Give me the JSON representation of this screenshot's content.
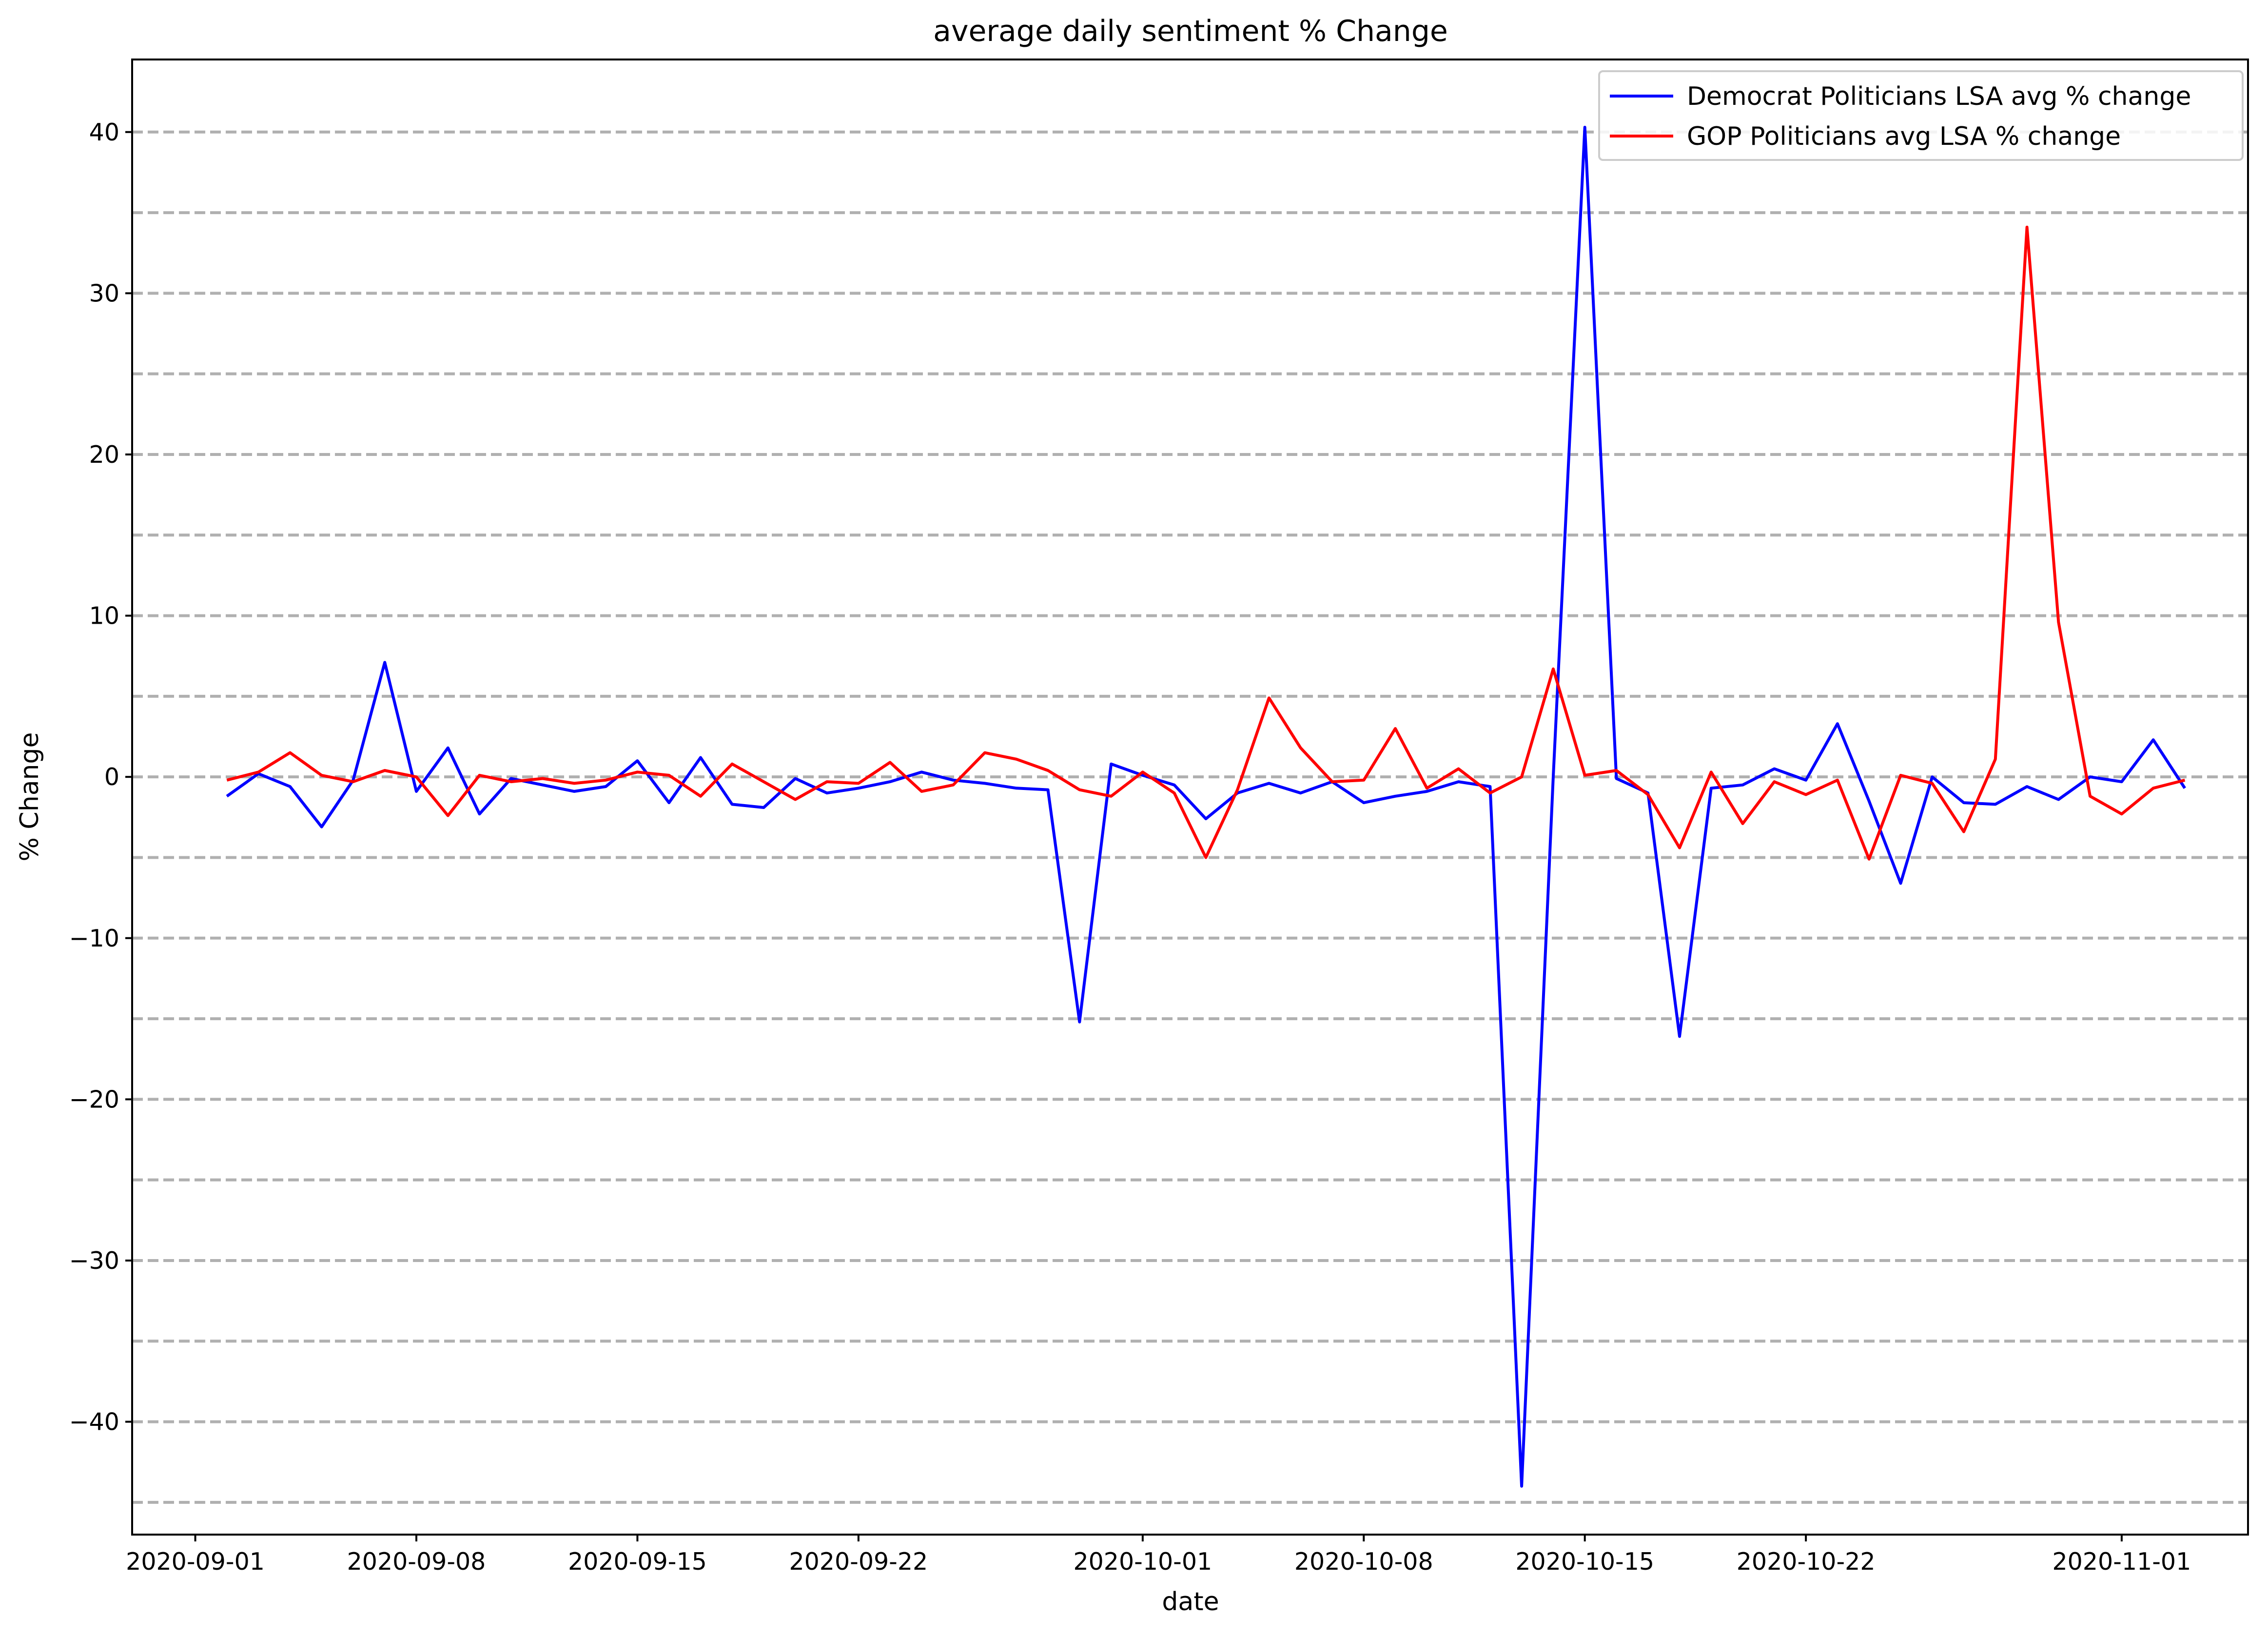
{
  "chart_data": {
    "type": "line",
    "title": "average daily sentiment % Change",
    "xlabel": "date",
    "ylabel": "% Change",
    "xlim": [
      "2020-08-30",
      "2020-11-05"
    ],
    "ylim": [
      -47,
      44.5
    ],
    "grid": {
      "axis": "y",
      "style": "dashed",
      "minor_step": 5
    },
    "legend_position": "top-right",
    "x_ticks": [
      "2020-09-01",
      "2020-09-08",
      "2020-09-15",
      "2020-09-22",
      "2020-10-01",
      "2020-10-08",
      "2020-10-15",
      "2020-10-22",
      "2020-11-01"
    ],
    "y_ticks": [
      -40,
      -30,
      -20,
      -10,
      0,
      10,
      20,
      30,
      40
    ],
    "y_tick_labels": [
      "−40",
      "−30",
      "−20",
      "−10",
      "0",
      "10",
      "20",
      "30",
      "40"
    ],
    "x": [
      "2020-09-02",
      "2020-09-03",
      "2020-09-04",
      "2020-09-05",
      "2020-09-06",
      "2020-09-07",
      "2020-09-08",
      "2020-09-09",
      "2020-09-10",
      "2020-09-11",
      "2020-09-12",
      "2020-09-13",
      "2020-09-14",
      "2020-09-15",
      "2020-09-16",
      "2020-09-17",
      "2020-09-18",
      "2020-09-19",
      "2020-09-20",
      "2020-09-21",
      "2020-09-22",
      "2020-09-23",
      "2020-09-24",
      "2020-09-25",
      "2020-09-26",
      "2020-09-27",
      "2020-09-28",
      "2020-09-29",
      "2020-09-30",
      "2020-10-01",
      "2020-10-02",
      "2020-10-03",
      "2020-10-04",
      "2020-10-05",
      "2020-10-06",
      "2020-10-07",
      "2020-10-08",
      "2020-10-09",
      "2020-10-10",
      "2020-10-11",
      "2020-10-12",
      "2020-10-13",
      "2020-10-14",
      "2020-10-15",
      "2020-10-16",
      "2020-10-17",
      "2020-10-18",
      "2020-10-19",
      "2020-10-20",
      "2020-10-21",
      "2020-10-22",
      "2020-10-23",
      "2020-10-24",
      "2020-10-25",
      "2020-10-26",
      "2020-10-27",
      "2020-10-28",
      "2020-10-29",
      "2020-10-30",
      "2020-10-31",
      "2020-11-01",
      "2020-11-02",
      "2020-11-03"
    ],
    "series": [
      {
        "name": "Democrat Politicians LSA avg % change",
        "color": "#0000ff",
        "values": [
          -1.2,
          0.2,
          -0.6,
          -3.1,
          -0.2,
          7.1,
          -0.9,
          1.8,
          -2.3,
          -0.1,
          -0.5,
          -0.9,
          -0.6,
          1.0,
          -1.6,
          1.2,
          -1.7,
          -1.9,
          -0.1,
          -1.0,
          -0.7,
          -0.3,
          0.3,
          -0.2,
          -0.4,
          -0.7,
          -0.8,
          -15.2,
          0.8,
          0.1,
          -0.5,
          -2.6,
          -1.0,
          -0.4,
          -1.0,
          -0.3,
          -1.6,
          -1.2,
          -0.9,
          -0.3,
          -0.6,
          -44.0,
          0.0,
          40.3,
          -0.1,
          -1.0,
          -16.1,
          -0.7,
          -0.5,
          0.5,
          -0.2,
          3.3,
          -1.5,
          -6.6,
          0.0,
          -1.6,
          -1.7,
          -0.6,
          -1.4,
          0.0,
          -0.3,
          2.3,
          -0.7
        ]
      },
      {
        "name": "GOP Politicians avg LSA % change",
        "color": "#ff0000",
        "values": [
          -0.2,
          0.3,
          1.5,
          0.1,
          -0.3,
          0.4,
          0.0,
          -2.4,
          0.1,
          -0.3,
          -0.1,
          -0.4,
          -0.2,
          0.3,
          0.1,
          -1.2,
          0.8,
          -0.3,
          -1.4,
          -0.3,
          -0.4,
          0.9,
          -0.9,
          -0.5,
          1.5,
          1.1,
          0.4,
          -0.8,
          -1.2,
          0.3,
          -1.0,
          -5.0,
          -0.8,
          4.9,
          1.8,
          -0.3,
          -0.2,
          3.0,
          -0.7,
          0.5,
          -1.0,
          0.0,
          6.7,
          0.1,
          0.4,
          -1.1,
          -4.4,
          0.3,
          -2.9,
          -0.3,
          -1.1,
          -0.2,
          -5.1,
          0.1,
          -0.4,
          -3.4,
          1.1,
          34.1,
          9.6,
          -1.2,
          -2.3,
          -0.7,
          -0.2
        ]
      }
    ]
  }
}
